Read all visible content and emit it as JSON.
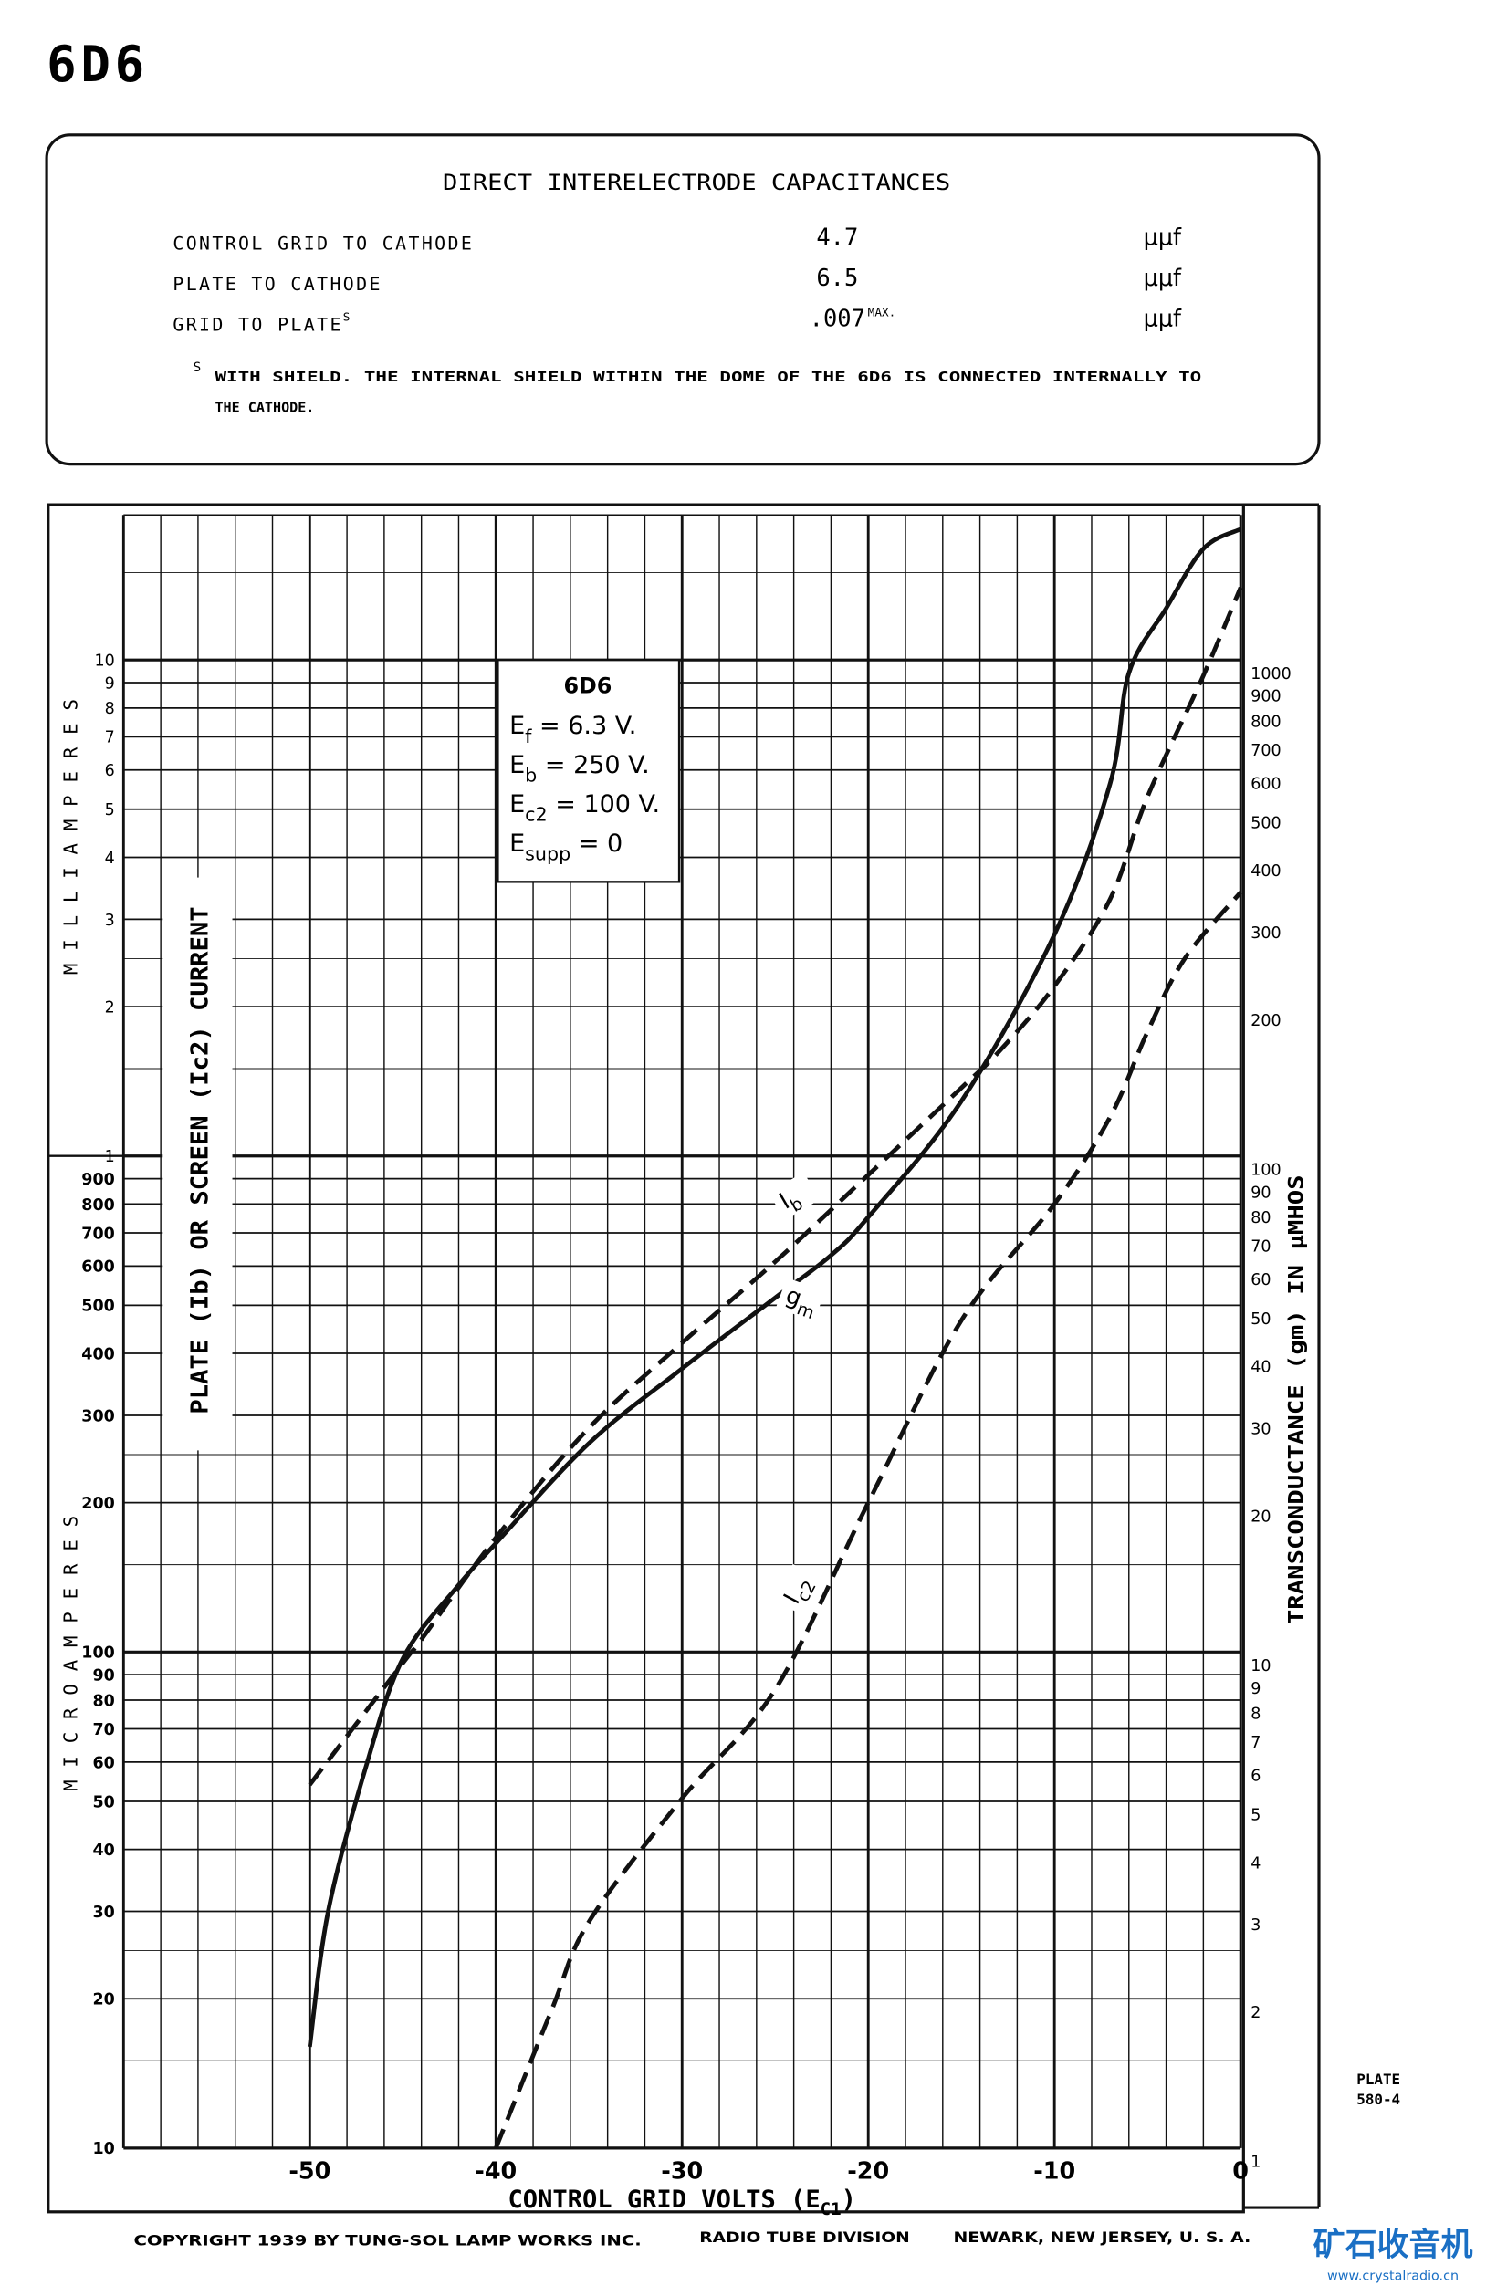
{
  "page_title": "6D6",
  "capacitances": {
    "heading": "DIRECT INTERELECTRODE CAPACITANCES",
    "rows": [
      {
        "label": "CONTROL GRID TO CATHODE",
        "sup": "",
        "value": "4.7",
        "value_note": "",
        "unit": "μμf"
      },
      {
        "label": "PLATE TO CATHODE",
        "sup": "",
        "value": "6.5",
        "value_note": "",
        "unit": "μμf"
      },
      {
        "label": "GRID TO PLATE",
        "sup": "S",
        "value": ".007",
        "value_note": "MAX.",
        "unit": "μμf"
      }
    ],
    "footnote_mark": "S",
    "footnote_line1": "WITH SHIELD.  THE INTERNAL SHIELD WITHIN THE DOME OF THE 6D6 IS CONNECTED INTERNALLY TO",
    "footnote_line2": "THE CATHODE."
  },
  "chart_data": {
    "type": "line",
    "xlabel": "CONTROL GRID VOLTS (Ec1)",
    "ylabel_left": "PLATE (Ib) OR SCREEN (Ic2) CURRENT",
    "ylabel_left_upper": "MILLIAMPERES",
    "ylabel_left_lower": "MICROAMPERES",
    "ylabel_right": "TRANSCONDUCTANCE (gm) IN μMHOS",
    "xlim": [
      -60,
      0
    ],
    "ylim_left_microamperes": [
      10,
      20000
    ],
    "ylim_right_micromhos": [
      1,
      2000
    ],
    "y_scale": "log",
    "grid": true,
    "x_ticks": [
      "-50",
      "-40",
      "-30",
      "-20",
      "-10",
      "0"
    ],
    "x_tick_values": [
      -50,
      -40,
      -30,
      -20,
      -10,
      0
    ],
    "left_ticks_ma": [
      "10",
      "9",
      "8",
      "7",
      "6",
      "5",
      "4",
      "3",
      "2",
      "1"
    ],
    "left_ticks_ma_values": [
      10000,
      9000,
      8000,
      7000,
      6000,
      5000,
      4000,
      3000,
      2000,
      1000
    ],
    "left_ticks_ua": [
      "900",
      "800",
      "700",
      "600",
      "500",
      "400",
      "300",
      "200",
      "100",
      "90",
      "80",
      "70",
      "60",
      "50",
      "40",
      "30",
      "20",
      "10"
    ],
    "left_ticks_ua_values": [
      900,
      800,
      700,
      600,
      500,
      400,
      300,
      200,
      100,
      90,
      80,
      70,
      60,
      50,
      40,
      30,
      20,
      10
    ],
    "right_ticks": [
      "1000",
      "900",
      "800",
      "700",
      "600",
      "500",
      "400",
      "300",
      "200",
      "100",
      "90",
      "80",
      "70",
      "60",
      "50",
      "40",
      "30",
      "20",
      "10",
      "9",
      "8",
      "7",
      "6",
      "5",
      "4",
      "3",
      "2",
      "1"
    ],
    "right_tick_values": [
      1000,
      900,
      800,
      700,
      600,
      500,
      400,
      300,
      200,
      100,
      90,
      80,
      70,
      60,
      50,
      40,
      30,
      20,
      10,
      9,
      8,
      7,
      6,
      5,
      4,
      3,
      2,
      1
    ],
    "legend": {
      "title": "6D6",
      "lines": [
        {
          "sym": "E",
          "sub": "f",
          "rest": " = 6.3 V."
        },
        {
          "sym": "E",
          "sub": "b",
          "rest": " = 250 V."
        },
        {
          "sym": "E",
          "sub": "c2",
          "rest": " = 100 V."
        },
        {
          "sym": "E",
          "sub": "supp",
          "rest": " = 0"
        }
      ]
    },
    "series": [
      {
        "name": "Ib",
        "label_main": "I",
        "label_sub": "b",
        "axis": "left",
        "unit": "microamperes",
        "style": "dashed",
        "x": [
          -50,
          -45,
          -44,
          -40,
          -35,
          -30,
          -25,
          -20,
          -15,
          -13,
          -10,
          -7,
          -5,
          -2,
          0
        ],
        "y": [
          54,
          95,
          106,
          170,
          283,
          420,
          612,
          916,
          1372,
          1620,
          2200,
          3300,
          5300,
          9300,
          14000
        ]
      },
      {
        "name": "gm",
        "label_main": "g",
        "label_sub": "m",
        "axis": "right",
        "unit": "micromhos",
        "style": "solid",
        "x": [
          -50,
          -49,
          -47,
          -45,
          -42,
          -40,
          -35,
          -30,
          -25,
          -22,
          -20,
          -15,
          -10,
          -7,
          -6,
          -4,
          -2,
          0
        ],
        "y": [
          1.7,
          3.2,
          6.2,
          10.3,
          14.5,
          17.6,
          28,
          39.6,
          55,
          67,
          80,
          137,
          297,
          600,
          1000,
          1350,
          1780,
          1950
        ]
      },
      {
        "name": "Ic2",
        "label_main": "I",
        "label_sub": "c2",
        "axis": "left",
        "unit": "microamperes",
        "style": "dashed",
        "x": [
          -40,
          -37,
          -35,
          -30,
          -25,
          -20,
          -15,
          -10,
          -7,
          -5,
          -3,
          0
        ],
        "y": [
          10,
          19,
          28.6,
          50.7,
          84,
          200,
          466,
          800,
          1200,
          1780,
          2500,
          3400
        ]
      }
    ]
  },
  "plate_number_line1": "PLATE",
  "plate_number_line2": "580-4",
  "footer": {
    "copyright": "COPYRIGHT  1939  BY  TUNG-SOL LAMP WORKS INC.",
    "division": "RADIO TUBE DIVISION",
    "location": "NEWARK, NEW JERSEY, U. S. A."
  },
  "watermark": {
    "line1": "矿石收音机",
    "line2": "www.crystalradio.cn",
    "color": "#1a6fc4"
  }
}
